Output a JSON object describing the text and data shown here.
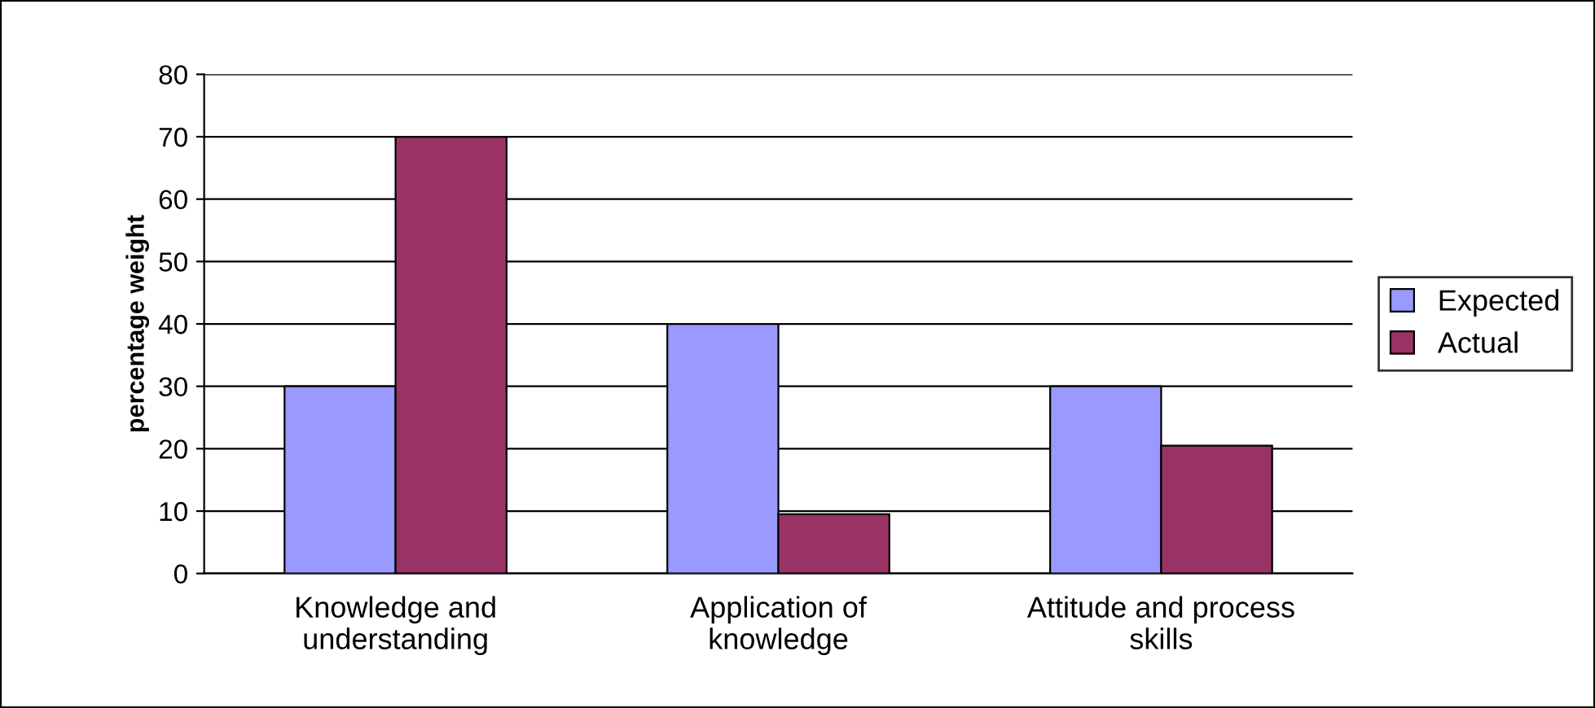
{
  "chart_data": {
    "type": "bar",
    "ylabel": "percentage weight",
    "categories": [
      "Knowledge and\nunderstanding",
      "Application of\nknowledge",
      "Attitude and process\nskills"
    ],
    "series": [
      {
        "name": "Expected",
        "color": "#9999ff",
        "values": [
          30,
          40,
          30
        ]
      },
      {
        "name": "Actual",
        "color": "#993366",
        "values": [
          70,
          9.5,
          20.5
        ]
      }
    ],
    "ylim": [
      0,
      80
    ],
    "yticks": [
      0,
      10,
      20,
      30,
      40,
      50,
      60,
      70,
      80
    ],
    "grid": "y",
    "legend": "right"
  }
}
